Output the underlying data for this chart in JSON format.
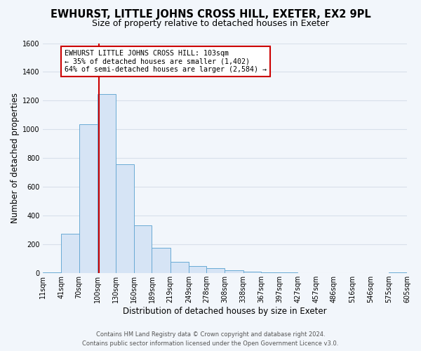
{
  "title": "EWHURST, LITTLE JOHNS CROSS HILL, EXETER, EX2 9PL",
  "subtitle": "Size of property relative to detached houses in Exeter",
  "xlabel": "Distribution of detached houses by size in Exeter",
  "ylabel": "Number of detached properties",
  "bin_labels": [
    "11sqm",
    "41sqm",
    "70sqm",
    "100sqm",
    "130sqm",
    "160sqm",
    "189sqm",
    "219sqm",
    "249sqm",
    "278sqm",
    "308sqm",
    "338sqm",
    "367sqm",
    "397sqm",
    "427sqm",
    "457sqm",
    "486sqm",
    "516sqm",
    "546sqm",
    "575sqm",
    "605sqm"
  ],
  "bin_edges": [
    11,
    41,
    70,
    100,
    130,
    160,
    189,
    219,
    249,
    278,
    308,
    338,
    367,
    397,
    427,
    457,
    486,
    516,
    546,
    575,
    605
  ],
  "bar_values": [
    5,
    275,
    1035,
    1248,
    758,
    335,
    178,
    80,
    50,
    35,
    20,
    10,
    8,
    5,
    3,
    0,
    0,
    0,
    0,
    5
  ],
  "bar_color": "#d6e4f5",
  "bar_edge_color": "#6aaad4",
  "marker_value": 103,
  "marker_color": "#cc0000",
  "ylim": [
    0,
    1600
  ],
  "yticks": [
    0,
    200,
    400,
    600,
    800,
    1000,
    1200,
    1400,
    1600
  ],
  "annotation_title": "EWHURST LITTLE JOHNS CROSS HILL: 103sqm",
  "annotation_line1": "← 35% of detached houses are smaller (1,402)",
  "annotation_line2": "64% of semi-detached houses are larger (2,584) →",
  "footer_line1": "Contains HM Land Registry data © Crown copyright and database right 2024.",
  "footer_line2": "Contains public sector information licensed under the Open Government Licence v3.0.",
  "bg_color": "#f2f6fb",
  "grid_color": "#d8e0ea",
  "title_fontsize": 10.5,
  "subtitle_fontsize": 9,
  "axis_label_fontsize": 8.5,
  "tick_fontsize": 7,
  "footer_fontsize": 6
}
